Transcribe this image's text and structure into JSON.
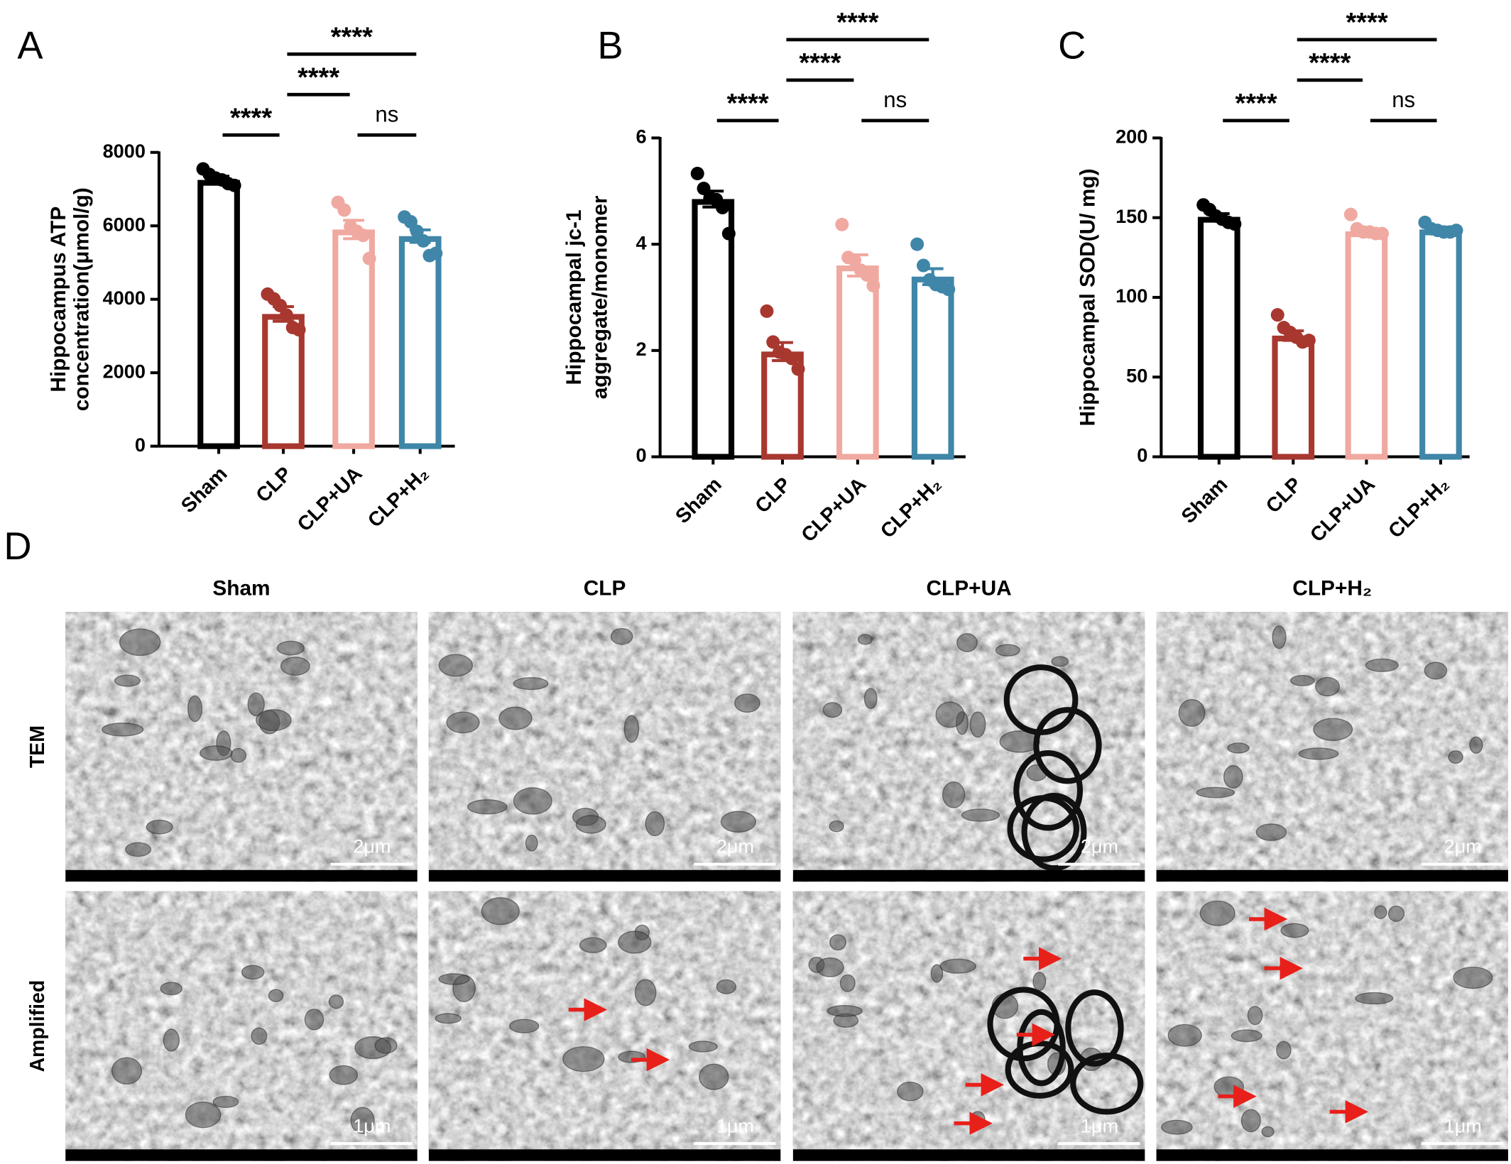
{
  "chart_data": [
    {
      "type": "bar",
      "label": "A",
      "ylabel": [
        "Hippocampus ATP",
        "concentration(μmol/g)"
      ],
      "categories": [
        "Sham",
        "CLP",
        "CLP+UA",
        "CLP+H₂"
      ],
      "colors": [
        "#000000",
        "#a8382f",
        "#f0a9a0",
        "#3f86a8"
      ],
      "values": [
        7250,
        3600,
        5900,
        5720
      ],
      "errors": [
        100,
        200,
        250,
        170
      ],
      "points": [
        [
          7550,
          7400,
          7300,
          7250,
          7150,
          7100
        ],
        [
          4140,
          4010,
          3830,
          3570,
          3230,
          3170
        ],
        [
          6640,
          6430,
          5980,
          5850,
          5740,
          5110
        ],
        [
          6240,
          6110,
          5850,
          5590,
          5190,
          5250
        ]
      ],
      "ylim": [
        0,
        8000
      ],
      "yticks": [
        0,
        2000,
        4000,
        6000,
        8000
      ],
      "significance": [
        {
          "from": 0,
          "to": 1,
          "label": "****"
        },
        {
          "from": 2,
          "to": 3,
          "label": "ns"
        },
        {
          "from": 1,
          "to": 2,
          "label": "****"
        },
        {
          "from": 1,
          "to": 3,
          "label": "****"
        }
      ]
    },
    {
      "type": "bar",
      "label": "B",
      "ylabel": [
        "Hippocampal jc-1",
        "aggregate/monomer"
      ],
      "categories": [
        "Sham",
        "CLP",
        "CLP+UA",
        "CLP+H₂"
      ],
      "colors": [
        "#000000",
        "#a8382f",
        "#f0a9a0",
        "#3f86a8"
      ],
      "values": [
        4.85,
        1.98,
        3.6,
        3.39
      ],
      "errors": [
        0.15,
        0.17,
        0.2,
        0.15
      ],
      "points": [
        [
          5.33,
          5.05,
          4.87,
          4.84,
          4.69,
          4.2
        ],
        [
          2.74,
          2.16,
          1.97,
          1.92,
          1.85,
          1.65
        ],
        [
          4.37,
          3.75,
          3.7,
          3.51,
          3.42,
          3.22
        ],
        [
          4.0,
          3.6,
          3.33,
          3.24,
          3.2,
          3.15
        ]
      ],
      "ylim": [
        0,
        6
      ],
      "yticks": [
        0,
        2,
        4,
        6
      ],
      "significance": [
        {
          "from": 0,
          "to": 1,
          "label": "****"
        },
        {
          "from": 2,
          "to": 3,
          "label": "ns"
        },
        {
          "from": 1,
          "to": 2,
          "label": "****"
        },
        {
          "from": 1,
          "to": 3,
          "label": "****"
        }
      ]
    },
    {
      "type": "bar",
      "label": "C",
      "ylabel": [
        "Hippocampal SOD(U/ mg)"
      ],
      "categories": [
        "Sham",
        "CLP",
        "CLP+UA",
        "CLP+H₂"
      ],
      "colors": [
        "#000000",
        "#a8382f",
        "#f0a9a0",
        "#3f86a8"
      ],
      "values": [
        150.5,
        76,
        141.4,
        142.6
      ],
      "errors": [
        2,
        3,
        2,
        1.5
      ],
      "points": [
        [
          158,
          155,
          151,
          149,
          147,
          146
        ],
        [
          89,
          81,
          78,
          75,
          72,
          73
        ],
        [
          152,
          143,
          141,
          141,
          140,
          140
        ],
        [
          147,
          143,
          142,
          141,
          141,
          142
        ]
      ],
      "ylim": [
        0,
        200
      ],
      "yticks": [
        0,
        50,
        100,
        150,
        200
      ],
      "significance": [
        {
          "from": 0,
          "to": 1,
          "label": "****"
        },
        {
          "from": 2,
          "to": 3,
          "label": "ns"
        },
        {
          "from": 1,
          "to": 2,
          "label": "****"
        },
        {
          "from": 1,
          "to": 3,
          "label": "****"
        }
      ]
    }
  ],
  "figure_d": {
    "label": "D",
    "columns": [
      "Sham",
      "CLP",
      "CLP+UA",
      "CLP+H₂"
    ],
    "rows": [
      {
        "label": "TEM",
        "scale_bar": "2μm"
      },
      {
        "label": "Amplified",
        "scale_bar": "1μm"
      }
    ]
  }
}
